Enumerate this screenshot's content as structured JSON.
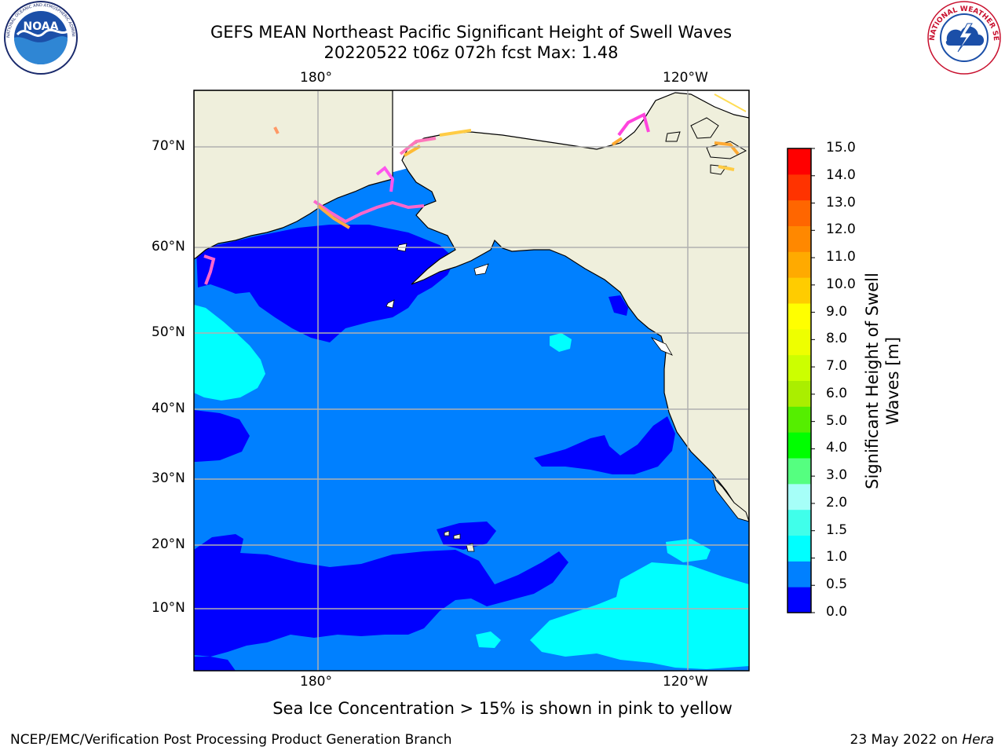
{
  "header": {
    "title_line1": "GEFS MEAN Northeast Pacific Significant Height of Swell Waves",
    "title_line2": "20220522 t06z 072h fcst   Max: 1.48"
  },
  "logos": {
    "noaa_text": "NOAA",
    "noaa_ring": "NATIONAL OCEANIC AND ATMOSPHERIC ADMINISTRATION · U.S. DEPARTMENT OF COMMERCE",
    "nws_ring": "NATIONAL WEATHER SERVICE"
  },
  "map": {
    "top_lon_labels": [
      "180°",
      "120°W"
    ],
    "bottom_lon_labels": [
      "180°",
      "120°W"
    ],
    "lat_labels": [
      "70°N",
      "60°N",
      "50°N",
      "40°N",
      "30°N",
      "20°N",
      "10°N"
    ],
    "colors": {
      "land": "#efefdc",
      "sea_ice": "#ffffff",
      "frame": "#000000",
      "grid": "#b0b0b0"
    }
  },
  "colorbar": {
    "title_line1": "Significant Height of Swell",
    "title_line2": "Waves [m]",
    "ticks": [
      "15.0",
      "14.0",
      "13.0",
      "12.0",
      "11.0",
      "10.0",
      "9.0",
      "8.0",
      "7.0",
      "6.0",
      "5.0",
      "4.0",
      "3.0",
      "2.0",
      "1.5",
      "1.0",
      "0.5",
      "0.0"
    ],
    "colors_bottom_to_top": [
      "#0000ff",
      "#0080ff",
      "#00ffff",
      "#40ffea",
      "#a6fff8",
      "#55ff80",
      "#00ff00",
      "#55ee00",
      "#aaee00",
      "#ccff00",
      "#eeff00",
      "#ffff00",
      "#ffcc00",
      "#ffaa00",
      "#ff8800",
      "#ff6600",
      "#ff3300",
      "#ff0000"
    ]
  },
  "note": "Sea Ice Concentration > 15% is shown in pink to yellow",
  "footer": {
    "left": "NCEP/EMC/Verification Post Processing Product Generation Branch",
    "right_prefix": "23 May 2022 on ",
    "right_host": "Hera"
  }
}
